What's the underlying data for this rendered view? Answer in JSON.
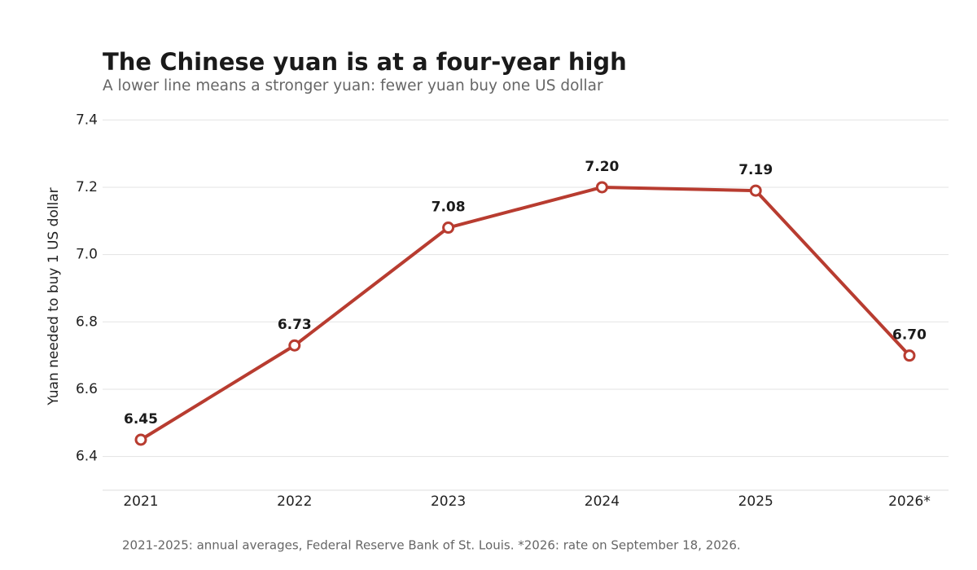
{
  "chart_data": {
    "type": "line",
    "title": "The Chinese yuan is at a four-year high",
    "subtitle": "A lower line means a stronger yuan: fewer yuan buy one US dollar",
    "y_label": "Yuan needed to buy 1 US dollar",
    "footnote": "2021-2025: annual averages, Federal Reserve Bank of St. Louis. *2026: rate on September 18, 2026.",
    "categories": [
      "2021",
      "2022",
      "2023",
      "2024",
      "2025",
      "2026*"
    ],
    "values": [
      6.45,
      6.73,
      7.08,
      7.2,
      7.19,
      6.7
    ],
    "value_labels": [
      "6.45",
      "6.73",
      "7.08",
      "7.20",
      "7.19",
      "6.70"
    ],
    "color": "#b83c30",
    "ylim": [
      6.3,
      7.42
    ],
    "yticks": [
      6.4,
      6.6,
      6.8,
      {
        "value": 7,
        "label": "7.0"
      },
      7.2,
      7.4
    ],
    "grid": true
  }
}
